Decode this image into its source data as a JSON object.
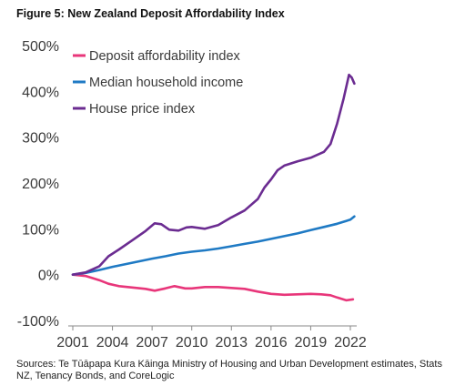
{
  "figure_title": "Figure 5: New Zealand Deposit Affordability Index",
  "source_note": "Sources: Te Tūāpapa Kura Kāinga Ministry of Housing and Urban Development estimates, Stats NZ, Tenancy Bonds, and CoreLogic",
  "chart_data": {
    "type": "line",
    "title": "",
    "xlabel": "",
    "ylabel": "",
    "xlim": [
      2001,
      2022.4
    ],
    "ylim": [
      -100,
      500
    ],
    "x_ticks": [
      2001,
      2004,
      2007,
      2010,
      2013,
      2016,
      2019,
      2022
    ],
    "y_ticks": [
      -100,
      0,
      100,
      200,
      300,
      400,
      500
    ],
    "y_tick_labels": [
      "-100%",
      "0%",
      "100%",
      "200%",
      "300%",
      "400%",
      "500%"
    ],
    "grid": false,
    "legend_position": "top-left",
    "series": [
      {
        "name": "Deposit affordability index",
        "color": "#e8367a",
        "points": [
          [
            2001,
            0
          ],
          [
            2002,
            -3
          ],
          [
            2003,
            -12
          ],
          [
            2003.7,
            -20
          ],
          [
            2004.5,
            -25
          ],
          [
            2005.5,
            -28
          ],
          [
            2006.5,
            -31
          ],
          [
            2007.2,
            -35
          ],
          [
            2008,
            -30
          ],
          [
            2008.7,
            -25
          ],
          [
            2009.5,
            -30
          ],
          [
            2010,
            -30
          ],
          [
            2011,
            -27
          ],
          [
            2012,
            -27
          ],
          [
            2013,
            -29
          ],
          [
            2014,
            -31
          ],
          [
            2015,
            -37
          ],
          [
            2016,
            -42
          ],
          [
            2017,
            -44
          ],
          [
            2018,
            -43
          ],
          [
            2019,
            -42
          ],
          [
            2019.8,
            -43
          ],
          [
            2020.5,
            -45
          ],
          [
            2021,
            -50
          ],
          [
            2021.7,
            -56
          ],
          [
            2022.2,
            -54
          ]
        ]
      },
      {
        "name": "Median household income",
        "color": "#1f7ac4",
        "points": [
          [
            2001,
            0
          ],
          [
            2002,
            4
          ],
          [
            2003,
            10
          ],
          [
            2004,
            17
          ],
          [
            2005,
            23
          ],
          [
            2006,
            29
          ],
          [
            2007,
            35
          ],
          [
            2008,
            40
          ],
          [
            2009,
            46
          ],
          [
            2010,
            50
          ],
          [
            2011,
            53
          ],
          [
            2012,
            57
          ],
          [
            2013,
            62
          ],
          [
            2014,
            67
          ],
          [
            2015,
            72
          ],
          [
            2016,
            78
          ],
          [
            2017,
            84
          ],
          [
            2018,
            90
          ],
          [
            2019,
            97
          ],
          [
            2020,
            104
          ],
          [
            2021,
            111
          ],
          [
            2022,
            120
          ],
          [
            2022.3,
            127
          ]
        ]
      },
      {
        "name": "House price index",
        "color": "#6b2c91",
        "points": [
          [
            2001,
            0
          ],
          [
            2002,
            5
          ],
          [
            2003,
            18
          ],
          [
            2003.7,
            40
          ],
          [
            2004.5,
            55
          ],
          [
            2005.5,
            75
          ],
          [
            2006.5,
            95
          ],
          [
            2007.2,
            112
          ],
          [
            2007.7,
            110
          ],
          [
            2008.3,
            98
          ],
          [
            2009,
            96
          ],
          [
            2009.6,
            103
          ],
          [
            2010,
            104
          ],
          [
            2011,
            100
          ],
          [
            2012,
            108
          ],
          [
            2013,
            125
          ],
          [
            2014,
            140
          ],
          [
            2015,
            165
          ],
          [
            2015.5,
            190
          ],
          [
            2016,
            208
          ],
          [
            2016.5,
            228
          ],
          [
            2017,
            238
          ],
          [
            2018,
            247
          ],
          [
            2019,
            255
          ],
          [
            2020,
            268
          ],
          [
            2020.5,
            285
          ],
          [
            2021,
            330
          ],
          [
            2021.5,
            385
          ],
          [
            2021.9,
            436
          ],
          [
            2022.1,
            430
          ],
          [
            2022.3,
            417
          ]
        ]
      }
    ]
  }
}
